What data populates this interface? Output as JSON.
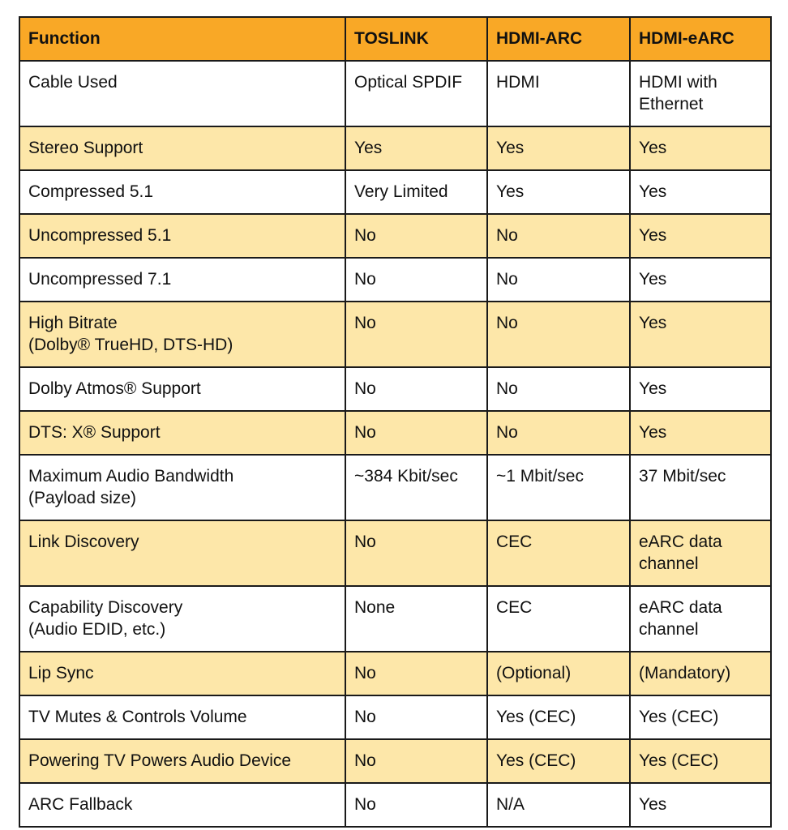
{
  "colors": {
    "header_background": "#f9a826",
    "odd_row_background": "#fde7a9",
    "even_row_background": "#ffffff",
    "border": "#1a1a1a"
  },
  "table": {
    "headers": [
      "Function",
      "TOSLINK",
      "HDMI-ARC",
      "HDMI-eARC"
    ],
    "rows": [
      {
        "function": [
          "Cable Used"
        ],
        "toslink": "Optical SPDIF",
        "hdmi_arc": "HDMI",
        "hdmi_earc": [
          "HDMI with",
          "Ethernet"
        ],
        "bold": []
      },
      {
        "function": [
          "Stereo Support"
        ],
        "toslink": "Yes",
        "hdmi_arc": "Yes",
        "hdmi_earc": [
          "Yes"
        ],
        "bold": [
          "toslink",
          "hdmi_arc",
          "hdmi_earc"
        ]
      },
      {
        "function": [
          "Compressed 5.1"
        ],
        "toslink": "Very Limited",
        "hdmi_arc": "Yes",
        "hdmi_earc": [
          "Yes"
        ],
        "bold": [
          "hdmi_earc"
        ]
      },
      {
        "function": [
          "Uncompressed 5.1"
        ],
        "toslink": "No",
        "hdmi_arc": "No",
        "hdmi_earc": [
          "Yes"
        ],
        "bold": [
          "hdmi_earc"
        ]
      },
      {
        "function": [
          "Uncompressed 7.1"
        ],
        "toslink": "No",
        "hdmi_arc": "No",
        "hdmi_earc": [
          "Yes"
        ],
        "bold": [
          "hdmi_earc"
        ]
      },
      {
        "function": [
          "High Bitrate",
          "(Dolby® TrueHD, DTS-HD)"
        ],
        "toslink": "No",
        "hdmi_arc": "No",
        "hdmi_earc": [
          "Yes"
        ],
        "bold": [
          "hdmi_earc"
        ]
      },
      {
        "function": [
          "Dolby Atmos® Support"
        ],
        "toslink": "No",
        "hdmi_arc": "No",
        "hdmi_earc": [
          "Yes"
        ],
        "bold": [
          "hdmi_earc"
        ]
      },
      {
        "function": [
          "DTS: X® Support"
        ],
        "toslink": "No",
        "hdmi_arc": "No",
        "hdmi_earc": [
          "Yes"
        ],
        "bold": [
          "hdmi_earc"
        ]
      },
      {
        "function": [
          "Maximum Audio Bandwidth",
          "(Payload size)"
        ],
        "toslink": "~384 Kbit/sec",
        "hdmi_arc": "~1 Mbit/sec",
        "hdmi_earc": [
          "37 Mbit/sec"
        ],
        "bold": [
          "hdmi_earc"
        ]
      },
      {
        "function": [
          "Link Discovery"
        ],
        "toslink": "No",
        "hdmi_arc": "CEC",
        "hdmi_earc": [
          "eARC data",
          "channel"
        ],
        "bold": [
          "hdmi_earc"
        ]
      },
      {
        "function": [
          "Capability Discovery",
          "(Audio EDID, etc.)"
        ],
        "toslink": "None",
        "hdmi_arc": "CEC",
        "hdmi_earc": [
          "eARC data",
          "channel"
        ],
        "bold": [
          "hdmi_earc"
        ]
      },
      {
        "function": [
          "Lip Sync"
        ],
        "toslink": "No",
        "hdmi_arc": "(Optional)",
        "hdmi_earc": [
          "(Mandatory)"
        ],
        "bold": [
          "hdmi_earc"
        ]
      },
      {
        "function": [
          "TV Mutes & Controls Volume"
        ],
        "toslink": "No",
        "hdmi_arc": "Yes (CEC)",
        "hdmi_earc": [
          "Yes (CEC)"
        ],
        "bold": [
          "hdmi_arc",
          "hdmi_earc"
        ]
      },
      {
        "function": [
          "Powering TV Powers Audio Device"
        ],
        "toslink": "No",
        "hdmi_arc": "Yes (CEC)",
        "hdmi_earc": [
          "Yes (CEC)"
        ],
        "bold": [
          "hdmi_arc",
          "hdmi_earc"
        ]
      },
      {
        "function": [
          "ARC Fallback"
        ],
        "toslink": "No",
        "hdmi_arc": "N/A",
        "hdmi_earc": [
          "Yes"
        ],
        "bold": [
          "hdmi_earc"
        ]
      }
    ]
  }
}
